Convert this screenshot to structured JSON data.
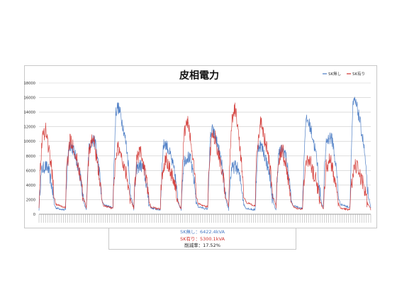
{
  "chart_data": {
    "type": "line",
    "title": "皮相電力",
    "xlabel": "",
    "ylabel": "",
    "ylim": [
      0,
      18000
    ],
    "yticks": [
      0,
      2000,
      4000,
      6000,
      8000,
      10000,
      12000,
      14000,
      16000,
      18000
    ],
    "grid": true,
    "legend_position": "top-right",
    "days": 7,
    "series": [
      {
        "name": "SK無し",
        "color": "#4a7bc4",
        "profile": [
          [
            0.0,
            1000
          ],
          [
            0.02,
            5000
          ],
          [
            0.06,
            9000
          ],
          [
            0.14,
            9600
          ],
          [
            0.2,
            9000
          ],
          [
            0.24,
            7000
          ],
          [
            0.28,
            5200
          ],
          [
            0.32,
            2200
          ],
          [
            0.36,
            1400
          ],
          [
            0.44,
            1200
          ],
          [
            0.52,
            1000
          ],
          [
            0.56,
            1000
          ],
          [
            0.58,
            6000
          ],
          [
            0.62,
            13200
          ],
          [
            0.66,
            14000
          ],
          [
            0.72,
            13000
          ],
          [
            0.78,
            11200
          ],
          [
            0.84,
            9000
          ],
          [
            0.88,
            7000
          ],
          [
            0.92,
            3500
          ],
          [
            0.96,
            2000
          ],
          [
            1.0,
            1000
          ]
        ],
        "day_peaks": [
          9600,
          14800,
          9800,
          11500,
          9600,
          13000,
          15500
        ],
        "noise": 900
      },
      {
        "name": "SK有り",
        "color": "#d0312d",
        "profile": [
          [
            0.0,
            1000
          ],
          [
            0.02,
            4800
          ],
          [
            0.06,
            9400
          ],
          [
            0.14,
            11000
          ],
          [
            0.2,
            8600
          ],
          [
            0.24,
            6800
          ],
          [
            0.28,
            5200
          ],
          [
            0.32,
            2400
          ],
          [
            0.36,
            1400
          ],
          [
            0.44,
            1200
          ],
          [
            0.52,
            1000
          ],
          [
            0.56,
            1000
          ],
          [
            0.58,
            5200
          ],
          [
            0.62,
            7600
          ],
          [
            0.66,
            9600
          ],
          [
            0.72,
            9000
          ],
          [
            0.78,
            7200
          ],
          [
            0.84,
            6000
          ],
          [
            0.88,
            4600
          ],
          [
            0.92,
            2600
          ],
          [
            0.96,
            1800
          ],
          [
            1.0,
            1000
          ]
        ],
        "day_peaks": [
          11800,
          10500,
          8800,
          12800,
          14500,
          8800,
          7600
        ],
        "noise": 1100
      }
    ]
  },
  "summary": {
    "line1": "SK無し：6422.4kVA",
    "line2": "SK有り：5300.1kVA",
    "line3": "削減率：17.52%"
  }
}
